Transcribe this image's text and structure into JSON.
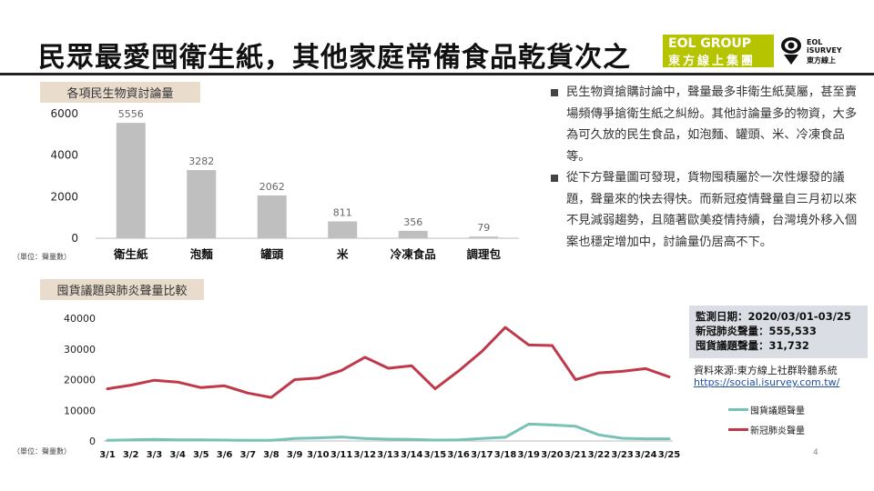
{
  "header": {
    "title": "民眾最愛囤衛生紙，其他家庭常備食品乾貨次之",
    "logo_eol_line1": "EOL GROUP",
    "logo_eol_line2": "東方線上集團",
    "logo_isurvey_line1": "EOL",
    "logo_isurvey_line2": "iSURVEY",
    "logo_isurvey_line3": "東方線上"
  },
  "bar_section": {
    "label": "各項民生物資討論量",
    "unit": "（單位：聲量數）"
  },
  "line_section": {
    "label": "囤貨議題與肺炎聲量比較",
    "unit": "（單位：聲量數）"
  },
  "bullets": [
    "民生物資搶購討論中，聲量最多非衛生紙莫屬，甚至賣場頻傳爭搶衛生紙之糾紛。其他討論量多的物資，大多為可久放的民生食品，如泡麵、罐頭、米、冷凍食品等。",
    "從下方聲量圖可發現，貨物囤積屬於一次性爆發的議題，聲量來的快去得快。而新冠疫情聲量自三月初以來不見減弱趨勢，且隨著歐美疫情持續，台灣境外移入個案也穩定增加中，討論量仍居高不下。"
  ],
  "monitor": {
    "date": "監測日期：2020/03/01-03/25",
    "covid": "新冠肺炎聲量：555,533",
    "hoard": "囤貨議題聲量：31,732"
  },
  "source": {
    "text": "資料來源:東方線上社群聆聽系統",
    "url": "https://social.isurvey.com.tw/"
  },
  "page_number": "4",
  "colors": {
    "bar": "#bfbfbf",
    "covid": "#c0394b",
    "hoard": "#78c1b6",
    "label_bg": "#e9dccd",
    "logo": "#b6c400"
  },
  "chart_data": [
    {
      "type": "bar",
      "title": "各項民生物資討論量",
      "categories": [
        "衛生紙",
        "泡麵",
        "罐頭",
        "米",
        "冷凍食品",
        "調理包"
      ],
      "values": [
        5556,
        3282,
        2062,
        811,
        356,
        79
      ],
      "yticks": [
        0,
        2000,
        4000,
        6000
      ],
      "ylim": [
        0,
        6000
      ],
      "grid": false
    },
    {
      "type": "line",
      "title": "囤貨議題與肺炎聲量比較",
      "x": [
        "3/1",
        "3/2",
        "3/3",
        "3/4",
        "3/5",
        "3/6",
        "3/7",
        "3/8",
        "3/9",
        "3/10",
        "3/11",
        "3/12",
        "3/13",
        "3/14",
        "3/15",
        "3/16",
        "3/17",
        "3/18",
        "3/19",
        "3/20",
        "3/21",
        "3/22",
        "3/23",
        "3/24",
        "3/25"
      ],
      "series": [
        {
          "name": "新冠肺炎聲量",
          "color": "#c0394b",
          "values": [
            17000,
            18200,
            19800,
            19200,
            17400,
            18000,
            15600,
            14200,
            20000,
            20500,
            23000,
            27300,
            23700,
            24500,
            17000,
            22800,
            29200,
            37000,
            31300,
            31100,
            20000,
            22200,
            22700,
            23600,
            20900
          ]
        },
        {
          "name": "囤貨議題聲量",
          "color": "#78c1b6",
          "values": [
            200,
            400,
            500,
            400,
            400,
            300,
            200,
            200,
            800,
            1000,
            1300,
            800,
            600,
            500,
            300,
            400,
            800,
            1200,
            5500,
            5200,
            4800,
            2000,
            900,
            700,
            700
          ]
        }
      ],
      "yticks": [
        0,
        10000,
        20000,
        30000,
        40000
      ],
      "ylim": [
        0,
        40000
      ],
      "legend": "right",
      "grid": false
    }
  ]
}
